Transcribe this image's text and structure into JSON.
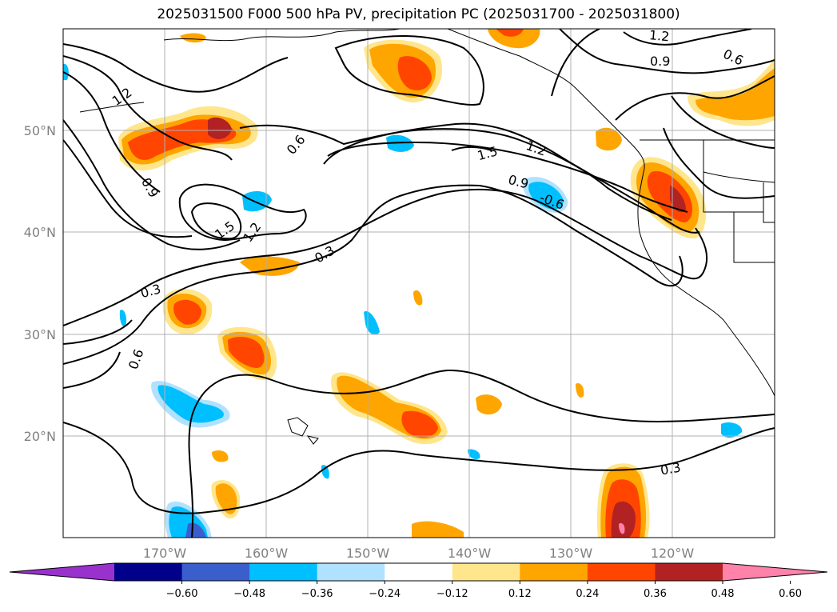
{
  "title": "2025031500 F000 500 hPa PV, precipitation PC (2025031700 - 2025031800)",
  "map": {
    "lon_range": [
      -180,
      -110
    ],
    "lat_range": [
      10,
      60
    ],
    "lat_ticks": [
      {
        "value": 20,
        "label": "20°N"
      },
      {
        "value": 30,
        "label": "30°N"
      },
      {
        "value": 40,
        "label": "40°N"
      },
      {
        "value": 50,
        "label": "50°N"
      }
    ],
    "lon_ticks": [
      {
        "value": -170,
        "label": "170°W"
      },
      {
        "value": -160,
        "label": "160°W"
      },
      {
        "value": -150,
        "label": "150°W"
      },
      {
        "value": -140,
        "label": "140°W"
      },
      {
        "value": -130,
        "label": "130°W"
      },
      {
        "value": -120,
        "label": "120°W"
      }
    ],
    "grid": true,
    "contour_labels": [
      "0.3",
      "0.6",
      "0.9",
      "1.2",
      "1.5"
    ]
  },
  "colorbar": {
    "ticks": [
      "−0.60",
      "−0.48",
      "−0.36",
      "−0.24",
      "−0.12",
      "0.12",
      "0.24",
      "0.36",
      "0.48",
      "0.60"
    ],
    "colors": [
      "#9932cc",
      "#00008b",
      "#3a5fcd",
      "#00bfff",
      "#b0e2ff",
      "#ffffff",
      "#ffe68c",
      "#ffa500",
      "#ff4500",
      "#b22222",
      "#ff82ab"
    ]
  }
}
